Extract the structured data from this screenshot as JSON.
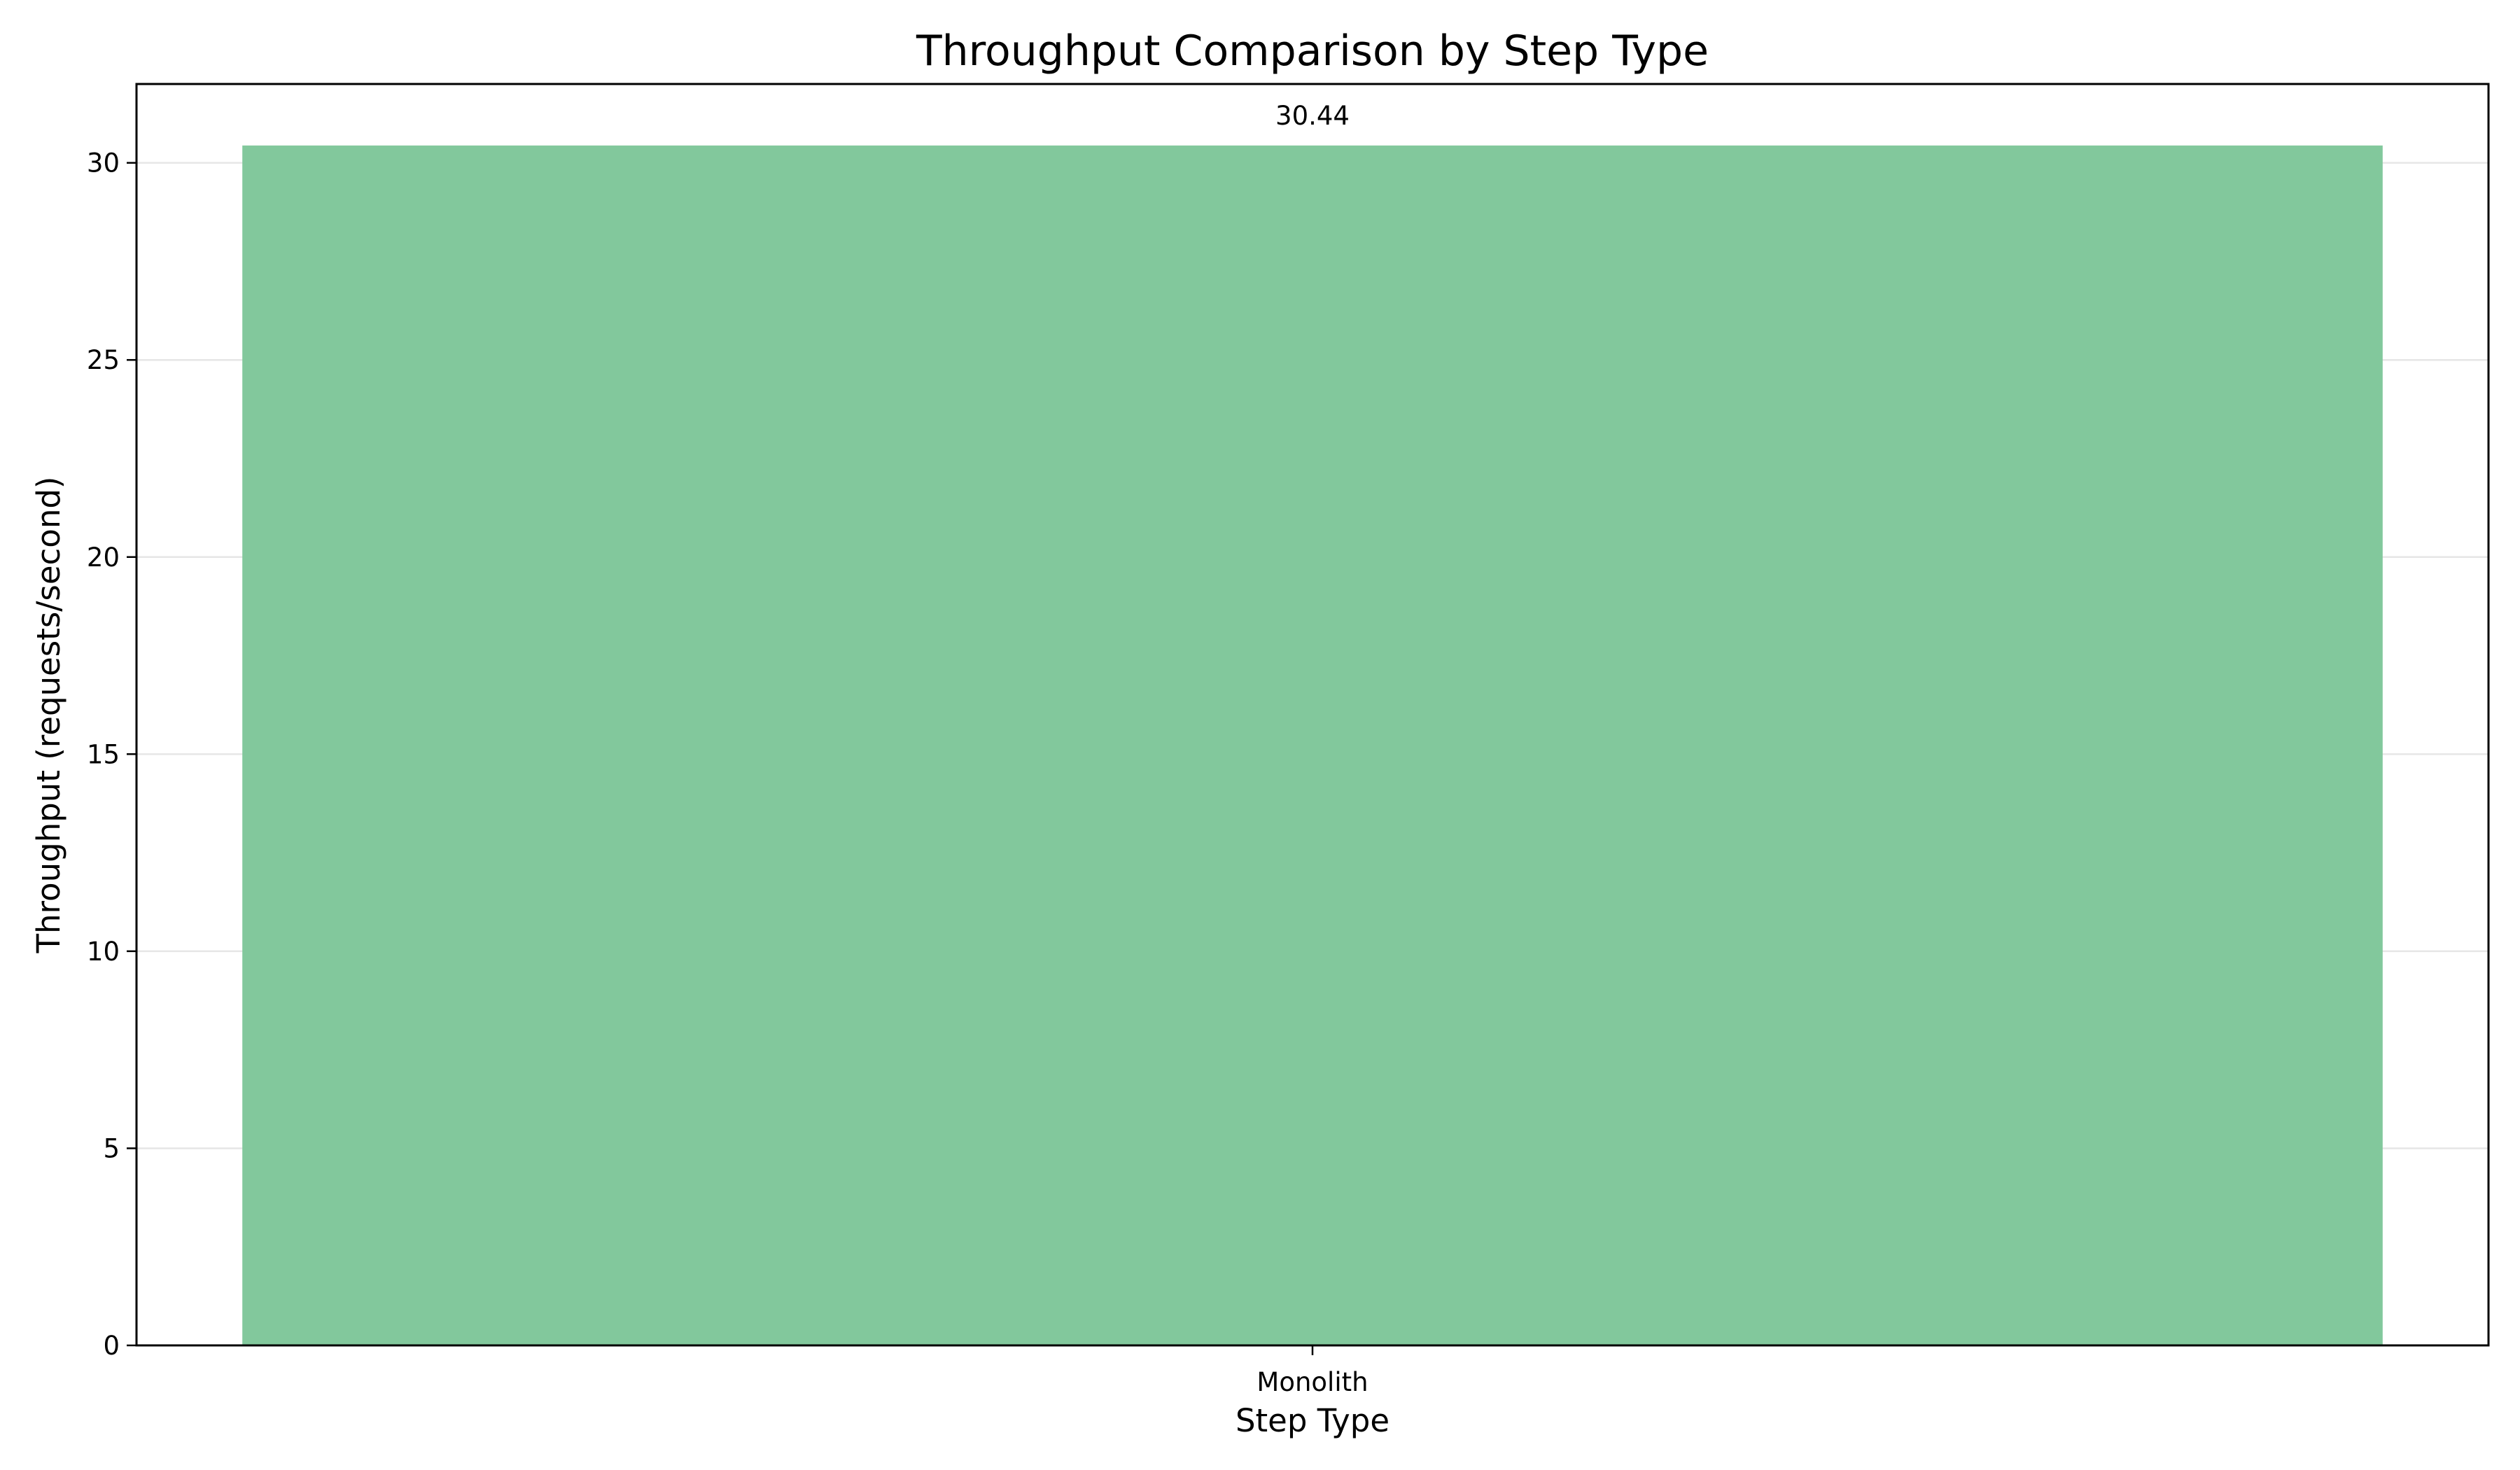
{
  "chart_data": {
    "type": "bar",
    "title": "Throughput Comparison by Step Type",
    "xlabel": "Step Type",
    "ylabel": "Throughput (requests/second)",
    "categories": [
      "Monolith"
    ],
    "values": [
      30.44
    ],
    "value_labels": [
      "30.44"
    ],
    "ylim": [
      0,
      32
    ],
    "yticks": [
      0,
      5,
      10,
      15,
      20,
      25,
      30
    ],
    "grid": "y-axis, light gray",
    "legend": "none",
    "bar_color": "#82c89c"
  }
}
